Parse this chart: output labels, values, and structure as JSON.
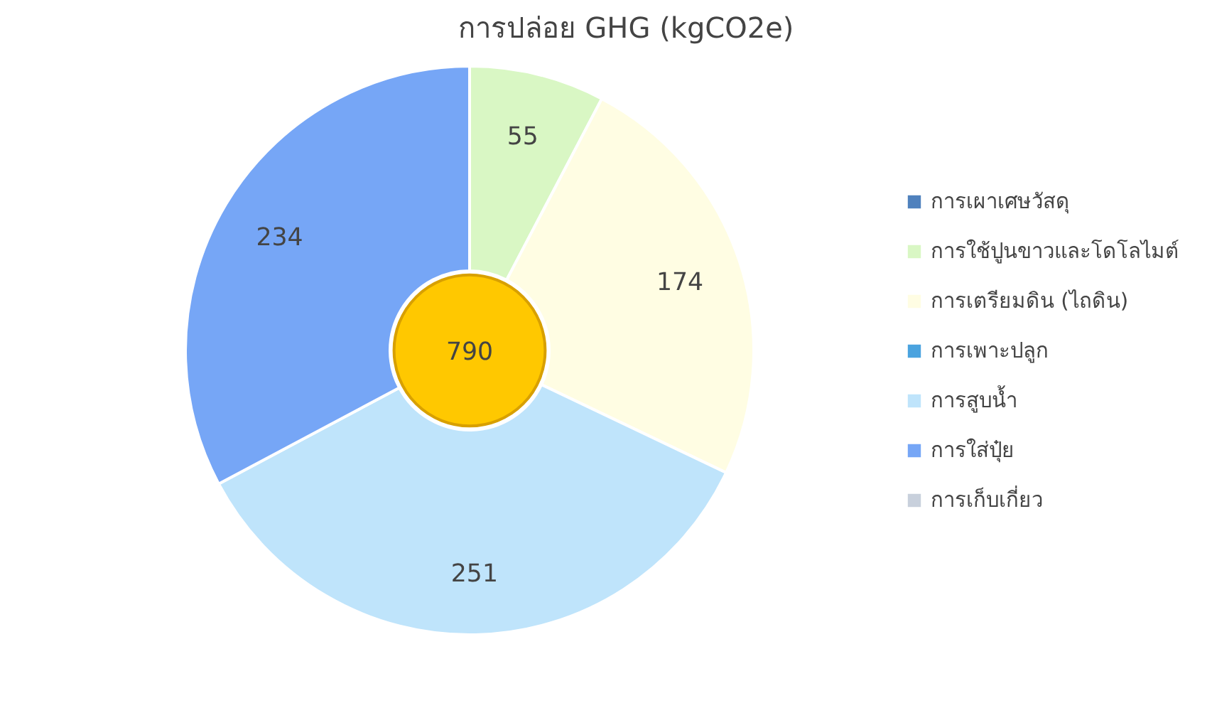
{
  "chart_data": {
    "type": "donut",
    "title": "การปล่อย GHG (kgCO2e)",
    "categories": [
      "การเผาเศษวัสดุ",
      "การใช้ปูนขาวและโดโลไมต์",
      "การเตรียมดิน (ไถดิน)",
      "การเพาะปลูก",
      "การสูบน้ำ",
      "การใส่ปุ๋ย",
      "การเก็บเกี่ยว"
    ],
    "values": [
      0,
      55,
      174,
      0,
      251,
      234,
      0
    ],
    "value_labels": [
      null,
      "55",
      "174",
      null,
      "251",
      "234",
      null
    ],
    "colors": [
      "#4f81bd",
      "#d9f7c4",
      "#fffde3",
      "#4aa3df",
      "#bfe4fb",
      "#76a6f6",
      "#c8d0dc"
    ],
    "annotations": [
      "790"
    ],
    "legend": "right"
  }
}
